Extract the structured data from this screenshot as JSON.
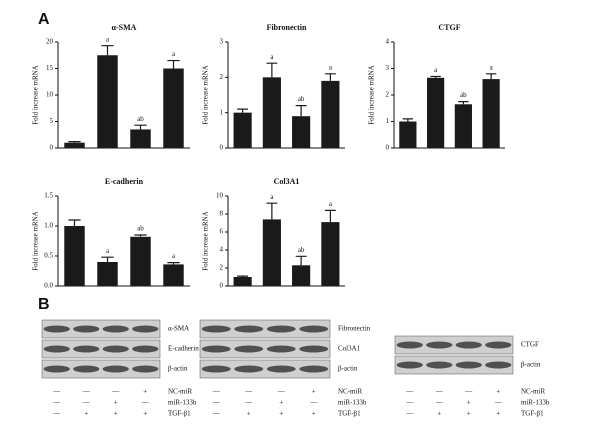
{
  "panels": [
    "A",
    "B"
  ],
  "chart_data": [
    {
      "type": "bar",
      "title": "α-SMA",
      "y_label": "Fold increase mRNA",
      "categories": [
        null,
        null,
        null,
        null
      ],
      "values": [
        1,
        17.5,
        3.5,
        15
      ],
      "errors": [
        0.2,
        1.8,
        0.8,
        1.5
      ],
      "annotations": [
        null,
        "a",
        "ab",
        "a"
      ],
      "color": "#1a1a1a",
      "ylim": [
        0,
        20
      ],
      "yticks": [
        0,
        5,
        10,
        15,
        20
      ]
    },
    {
      "type": "bar",
      "title": "Fibronectin",
      "y_label": "Fold increase mRNA",
      "categories": [
        null,
        null,
        null,
        null
      ],
      "values": [
        1.0,
        2.0,
        0.9,
        1.9
      ],
      "errors": [
        0.1,
        0.4,
        0.3,
        0.2
      ],
      "annotations": [
        null,
        "a",
        "ab",
        "a"
      ],
      "color": "#1a1a1a",
      "ylim": [
        0,
        3
      ],
      "yticks": [
        0,
        1,
        2,
        3
      ]
    },
    {
      "type": "bar",
      "title": "CTGF",
      "y_label": "Fold increase mRNA",
      "categories": [
        null,
        null,
        null,
        null
      ],
      "values": [
        1.0,
        2.65,
        1.65,
        2.6
      ],
      "errors": [
        0.1,
        0.05,
        0.1,
        0.2
      ],
      "annotations": [
        null,
        "a",
        "ab",
        "a"
      ],
      "color": "#1a1a1a",
      "ylim": [
        0,
        4
      ],
      "yticks": [
        0,
        1,
        2,
        3,
        4
      ]
    },
    {
      "type": "bar",
      "title": "E-cadherin",
      "y_label": "Fold increase mRNA",
      "categories": [
        null,
        null,
        null,
        null
      ],
      "values": [
        1.0,
        0.4,
        0.82,
        0.36
      ],
      "errors": [
        0.1,
        0.08,
        0.03,
        0.03
      ],
      "annotations": [
        null,
        "a",
        "ab",
        "a"
      ],
      "color": "#1a1a1a",
      "ylim": [
        0,
        1.5
      ],
      "yticks": [
        {
          "value": 0,
          "label": "0.0"
        },
        0.5,
        {
          "value": 1,
          "label": "1.0"
        },
        1.5
      ]
    },
    {
      "type": "bar",
      "title": "Col3A1",
      "y_label": "Fold increase mRNA",
      "categories": [
        null,
        null,
        null,
        null
      ],
      "values": [
        1.0,
        7.4,
        2.3,
        7.1
      ],
      "errors": [
        0.1,
        1.8,
        1.0,
        1.3
      ],
      "annotations": [
        null,
        "a",
        "ab",
        "a"
      ],
      "color": "#1a1a1a",
      "ylim": [
        0,
        10
      ],
      "yticks": [
        0,
        2,
        4,
        6,
        8,
        10
      ]
    }
  ],
  "blots": [
    {
      "bands": [
        "α-SMA",
        "E-cadherin",
        "β-actin"
      ],
      "conditions": [
        {
          "name": "NC-miR",
          "signs": [
            "—",
            "—",
            "—",
            "+"
          ]
        },
        {
          "name": "miR-133b",
          "signs": [
            "—",
            "—",
            "+",
            "—"
          ]
        },
        {
          "name": "TGF-β1",
          "signs": [
            "—",
            "+",
            "+",
            "+"
          ]
        }
      ]
    },
    {
      "bands": [
        "Fibronectin",
        "Col3A1",
        "β-actin"
      ],
      "conditions": [
        {
          "name": "NC-miR",
          "signs": [
            "—",
            "—",
            "—",
            "+"
          ]
        },
        {
          "name": "miR-133b",
          "signs": [
            "—",
            "—",
            "+",
            "—"
          ]
        },
        {
          "name": "TGF-β1",
          "signs": [
            "—",
            "+",
            "+",
            "+"
          ]
        }
      ]
    },
    {
      "bands": [
        "CTGF",
        "β-actin"
      ],
      "conditions": [
        {
          "name": "NC-miR",
          "signs": [
            "—",
            "—",
            "—",
            "+"
          ]
        },
        {
          "name": "miR-133b",
          "signs": [
            "—",
            "—",
            "+",
            "—"
          ]
        },
        {
          "name": "TGF-β1",
          "signs": [
            "—",
            "+",
            "+",
            "+"
          ]
        }
      ]
    }
  ]
}
